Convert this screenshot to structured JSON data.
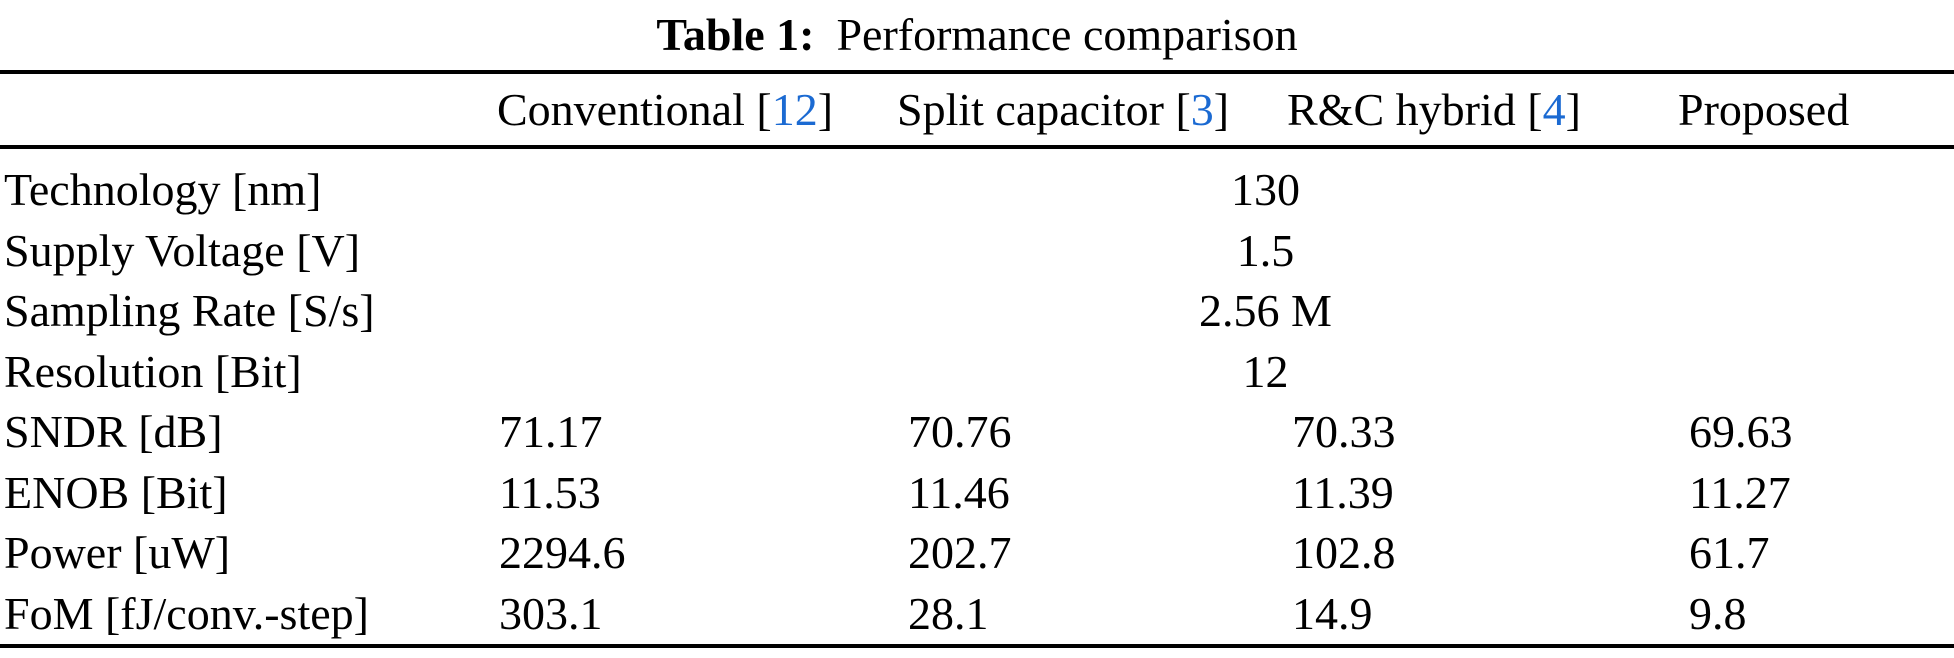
{
  "caption": {
    "label": "Table 1:",
    "text": "Performance comparison"
  },
  "header": {
    "columns": [
      {
        "pre": "Conventional [",
        "cite": "12",
        "post": "]"
      },
      {
        "pre": "Split capacitor [",
        "cite": "3",
        "post": "]"
      },
      {
        "pre": "R&C hybrid [",
        "cite": "4",
        "post": "]"
      },
      {
        "pre": "Proposed",
        "cite": "",
        "post": ""
      }
    ]
  },
  "merged_rows": [
    {
      "label": "Technology [nm]",
      "value": "130"
    },
    {
      "label": "Supply Voltage [V]",
      "value": "1.5"
    },
    {
      "label": "Sampling Rate [S/s]",
      "value": "2.56 M"
    },
    {
      "label": "Resolution [Bit]",
      "value": "12"
    }
  ],
  "data_rows": [
    {
      "label": "SNDR [dB]",
      "values": [
        "71.17",
        "70.76",
        "70.33",
        "69.63"
      ]
    },
    {
      "label": "ENOB [Bit]",
      "values": [
        "11.53",
        "11.46",
        "11.39",
        "11.27"
      ]
    },
    {
      "label": "Power [uW]",
      "values": [
        "2294.6",
        "202.7",
        "102.8",
        "61.7"
      ]
    },
    {
      "label": "FoM [fJ/conv.-step]",
      "values": [
        "303.1",
        "28.1",
        "14.9",
        "9.8"
      ]
    }
  ],
  "colors": {
    "text": "#000000",
    "background": "#ffffff",
    "rule": "#000000",
    "cite_blue": "#1b6ad2"
  }
}
